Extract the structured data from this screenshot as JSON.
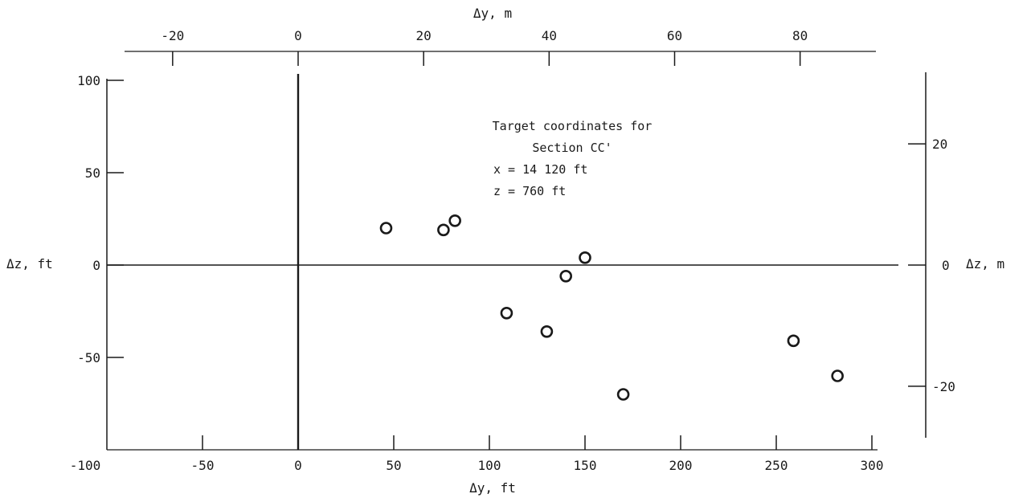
{
  "chart_data": {
    "type": "scatter",
    "title": "",
    "xlabel": "Δy, ft",
    "ylabel": "Δz, ft",
    "x2label": "Δy, m",
    "y2label": "Δz, m",
    "xlim": [
      -100,
      305
    ],
    "ylim": [
      -100,
      100
    ],
    "x_ticks": [
      -100,
      -50,
      0,
      50,
      100,
      150,
      200,
      250,
      300
    ],
    "y_ticks": [
      -100,
      -50,
      0,
      50,
      100
    ],
    "x2_ticks": [
      -20,
      0,
      20,
      40,
      60,
      80
    ],
    "y2_ticks": [
      20,
      0,
      -20
    ],
    "grid": false,
    "annotation": [
      "Target coordinates for",
      "Section CC'",
      "x = 14 120 ft",
      "z = 760 ft"
    ],
    "series": [
      {
        "marker": "open-circle",
        "x": [
          46,
          76,
          82,
          109,
          130,
          140,
          150,
          170,
          259,
          282
        ],
        "y": [
          20,
          19,
          24,
          -26,
          -36,
          -6,
          4,
          -70,
          -41,
          -60
        ]
      }
    ]
  }
}
